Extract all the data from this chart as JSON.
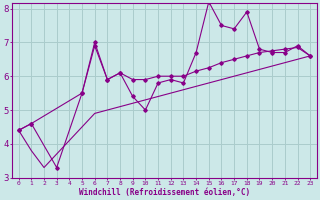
{
  "xlabel": "Windchill (Refroidissement éolien,°C)",
  "x": [
    0,
    1,
    2,
    3,
    4,
    5,
    6,
    7,
    8,
    9,
    10,
    11,
    12,
    13,
    14,
    15,
    16,
    17,
    18,
    19,
    20,
    21,
    22,
    23
  ],
  "y_main": [
    4.4,
    4.6,
    null,
    3.3,
    null,
    5.5,
    7.0,
    5.9,
    6.1,
    5.4,
    5.0,
    5.8,
    5.9,
    5.8,
    6.7,
    8.2,
    7.5,
    7.4,
    7.9,
    6.8,
    6.7,
    6.7,
    6.9,
    6.6
  ],
  "y_upper": [
    4.4,
    4.6,
    null,
    null,
    null,
    5.5,
    6.9,
    5.9,
    6.1,
    5.9,
    5.9,
    6.0,
    6.0,
    6.0,
    6.15,
    6.25,
    6.4,
    6.5,
    6.6,
    6.7,
    6.75,
    6.8,
    6.85,
    6.6
  ],
  "y_trend": [
    4.4,
    3.8,
    3.3,
    3.7,
    4.1,
    4.5,
    4.9,
    5.0,
    5.1,
    5.2,
    5.3,
    5.4,
    5.5,
    5.6,
    5.7,
    5.8,
    5.9,
    6.0,
    6.1,
    6.2,
    6.3,
    6.4,
    6.5,
    6.6
  ],
  "line_color": "#880088",
  "bg_color": "#cce8e8",
  "grid_color": "#aacccc",
  "ylim": [
    3,
    8
  ],
  "xlim": [
    -0.5,
    23.5
  ],
  "yticks": [
    3,
    4,
    5,
    6,
    7,
    8
  ],
  "xticks": [
    0,
    1,
    2,
    3,
    4,
    5,
    6,
    7,
    8,
    9,
    10,
    11,
    12,
    13,
    14,
    15,
    16,
    17,
    18,
    19,
    20,
    21,
    22,
    23
  ]
}
